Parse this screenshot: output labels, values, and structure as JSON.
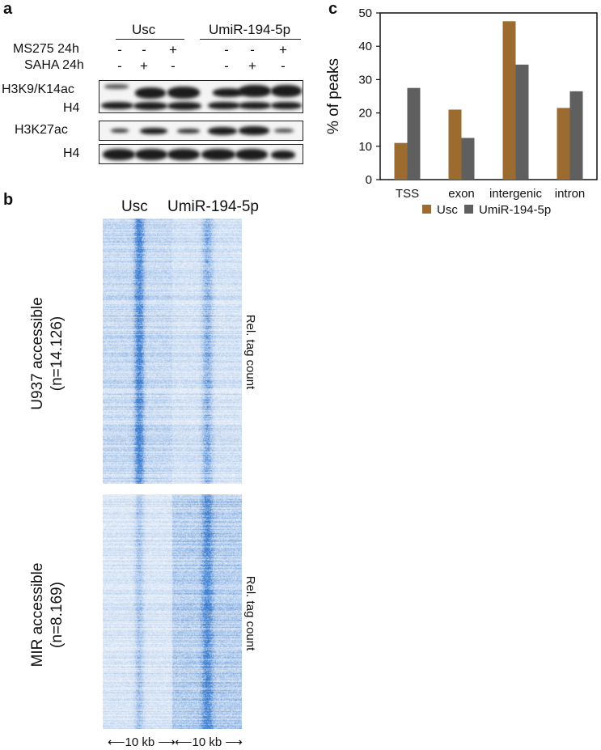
{
  "panels": {
    "a": "a",
    "b": "b",
    "c": "c"
  },
  "blot": {
    "group1": "Usc",
    "group2": "UmiR-194-5p",
    "treatments": [
      {
        "label": "MS275 24h",
        "signs": [
          "-",
          "-",
          "+",
          "-",
          "-",
          "+"
        ]
      },
      {
        "label": "SAHA 24h",
        "signs": [
          "-",
          "+",
          "-",
          "-",
          "+",
          "-"
        ]
      }
    ],
    "rows": {
      "h3k9": "H3K9/K14ac",
      "h4a": "H4",
      "h3k27": "H3K27ac",
      "h4b": "H4"
    }
  },
  "heatmap": {
    "col1": "Usc",
    "col2": "UmiR-194-5p",
    "top_label_line1": "U937 accessible",
    "top_label_line2": "(n=14.126)",
    "bottom_label_line1": "MIR accessible",
    "bottom_label_line2": "(n=8.169)",
    "side_label": "Rel. tag count",
    "scale1": "10 kb",
    "scale2": "10 kb",
    "color": "#3f7fd0"
  },
  "chart_data": {
    "type": "bar",
    "categories": [
      "TSS",
      "exon",
      "intergenic",
      "intron"
    ],
    "series": [
      {
        "name": "Usc",
        "values": [
          11,
          21,
          47.5,
          21.5
        ],
        "color": "#9b6b2f"
      },
      {
        "name": "UmiR-194-5p",
        "values": [
          27.5,
          12.5,
          34.5,
          26.5
        ],
        "color": "#5f5f5f"
      }
    ],
    "ylabel": "% of peaks",
    "ylim": [
      0,
      50
    ],
    "yticks": [
      0,
      10,
      20,
      30,
      40,
      50
    ],
    "legend_position": "bottom"
  }
}
